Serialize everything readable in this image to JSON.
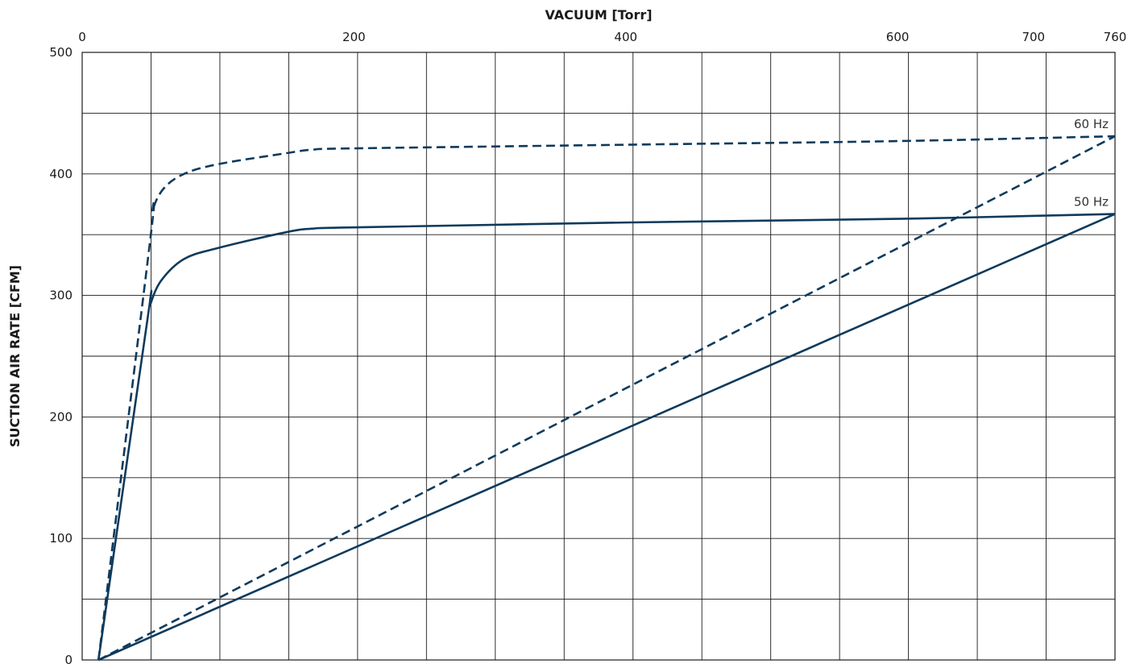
{
  "chart_data": {
    "type": "line",
    "xlabel": "VACUUM  [Torr]",
    "ylabel": "SUCTION AIR RATE  [CFM]",
    "xlim": [
      0,
      760
    ],
    "ylim": [
      0,
      500
    ],
    "x_axis_position": "top",
    "x_ticks": [
      0,
      200,
      400,
      600,
      700,
      760
    ],
    "y_ticks": [
      0,
      100,
      200,
      300,
      400,
      500
    ],
    "grid": true,
    "colors": {
      "line": "#0e3a5c",
      "grid": "#1a1a1a"
    },
    "series": [
      {
        "name": "60 Hz",
        "style": "dashed",
        "x": [
          12,
          50,
          52,
          60,
          75,
          100,
          150,
          170,
          200,
          400,
          600,
          760
        ],
        "y": [
          0,
          345,
          370,
          388,
          400,
          408,
          417,
          420,
          421,
          424,
          427,
          431
        ]
      },
      {
        "name": "50 Hz",
        "style": "solid",
        "x": [
          12,
          48,
          50,
          58,
          75,
          100,
          150,
          170,
          200,
          400,
          600,
          760
        ],
        "y": [
          0,
          280,
          292,
          312,
          330,
          339,
          352,
          355,
          356,
          360,
          363,
          367
        ]
      },
      {
        "name": "",
        "style": "dashed",
        "x": [
          12,
          760
        ],
        "y": [
          0,
          431
        ]
      },
      {
        "name": "",
        "style": "solid",
        "x": [
          12,
          760
        ],
        "y": [
          0,
          367
        ]
      }
    ]
  }
}
